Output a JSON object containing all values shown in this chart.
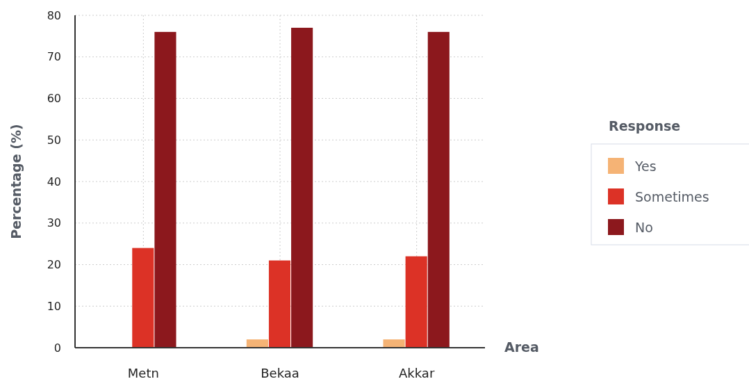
{
  "chart_data": {
    "type": "bar",
    "xlabel": "Area",
    "ylabel": "Percentage (%)",
    "legend_title": "Response",
    "categories": [
      "Metn",
      "Bekaa",
      "Akkar"
    ],
    "series": [
      {
        "name": "Yes",
        "color": "#f5b375",
        "values": [
          0,
          2,
          2
        ]
      },
      {
        "name": "Sometimes",
        "color": "#dc3226",
        "values": [
          24,
          21,
          22
        ]
      },
      {
        "name": "No",
        "color": "#8c181d",
        "values": [
          76,
          77,
          76
        ]
      }
    ],
    "ylim": [
      0,
      80
    ],
    "yticks": [
      0,
      10,
      20,
      30,
      40,
      50,
      60,
      70,
      80
    ],
    "grid": true,
    "legend": "right"
  }
}
